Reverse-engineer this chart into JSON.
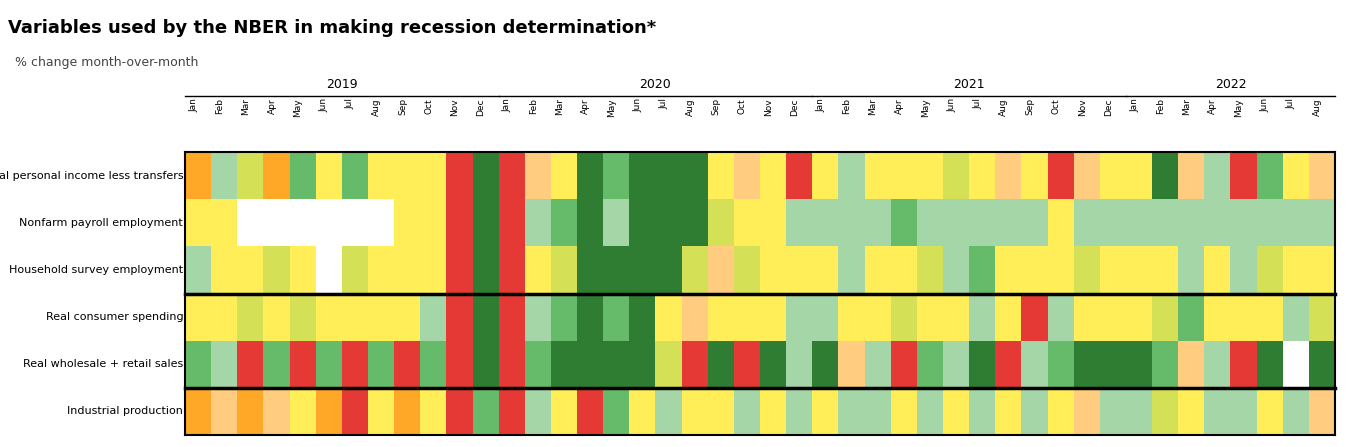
{
  "title": "Variables used by the NBER in making recession determination*",
  "subtitle": "% change month-over-month",
  "row_labels": [
    "Real personal income less transfers",
    "Nonfarm payroll employment",
    "Household survey employment",
    "Real consumer spending",
    "Real wholesale + retail sales",
    "Industrial production"
  ],
  "years": [
    "2019",
    "2020",
    "2021",
    "2022"
  ],
  "year_months": [
    12,
    12,
    12,
    8
  ],
  "months": [
    "Jan",
    "Feb",
    "Mar",
    "Apr",
    "May",
    "Jun",
    "Jul",
    "Aug",
    "Sep",
    "Oct",
    "Nov",
    "Dec",
    "Jan",
    "Feb",
    "Mar",
    "Apr",
    "May",
    "Jun",
    "Jul",
    "Aug",
    "Sep",
    "Oct",
    "Nov",
    "Dec",
    "Jan",
    "Feb",
    "Mar",
    "Apr",
    "May",
    "Jun",
    "Jul",
    "Aug",
    "Sep",
    "Oct",
    "Nov",
    "Dec",
    "Jan",
    "Feb",
    "Mar",
    "Apr",
    "May",
    "Jun",
    "Jul",
    "Aug"
  ],
  "grid_data": {
    "Real personal income less transfers": [
      "#ffa726",
      "#a5d6a7",
      "#d4e157",
      "#ffa726",
      "#66bb6a",
      "#ffee58",
      "#66bb6a",
      "#ffee58",
      "#ffee58",
      "#ffee58",
      "#e53935",
      "#2e7d32",
      "#e53935",
      "#ffcc80",
      "#ffee58",
      "#2e7d32",
      "#66bb6a",
      "#2e7d32",
      "#2e7d32",
      "#2e7d32",
      "#ffee58",
      "#ffcc80",
      "#ffee58",
      "#e53935",
      "#ffee58",
      "#a5d6a7",
      "#ffee58",
      "#ffee58",
      "#ffee58",
      "#d4e157",
      "#ffee58",
      "#ffcc80",
      "#ffee58",
      "#e53935",
      "#ffcc80",
      "#ffee58",
      "#ffee58",
      "#2e7d32",
      "#ffcc80",
      "#a5d6a7",
      "#e53935",
      "#66bb6a",
      "#ffee58",
      "#ffcc80"
    ],
    "Nonfarm payroll employment": [
      "#ffee58",
      "#ffee58",
      "#ffffff",
      "#ffffff",
      "#ffffff",
      "#ffffff",
      "#ffffff",
      "#ffffff",
      "#ffee58",
      "#ffee58",
      "#e53935",
      "#2e7d32",
      "#e53935",
      "#a5d6a7",
      "#66bb6a",
      "#2e7d32",
      "#a5d6a7",
      "#2e7d32",
      "#2e7d32",
      "#2e7d32",
      "#d4e157",
      "#ffee58",
      "#ffee58",
      "#a5d6a7",
      "#a5d6a7",
      "#a5d6a7",
      "#a5d6a7",
      "#66bb6a",
      "#a5d6a7",
      "#a5d6a7",
      "#a5d6a7",
      "#a5d6a7",
      "#a5d6a7",
      "#ffee58",
      "#a5d6a7",
      "#a5d6a7",
      "#a5d6a7",
      "#a5d6a7",
      "#a5d6a7",
      "#a5d6a7",
      "#a5d6a7",
      "#a5d6a7",
      "#a5d6a7",
      "#a5d6a7"
    ],
    "Household survey employment": [
      "#a5d6a7",
      "#ffee58",
      "#ffee58",
      "#d4e157",
      "#ffee58",
      "#ffffff",
      "#d4e157",
      "#ffee58",
      "#ffee58",
      "#ffee58",
      "#e53935",
      "#2e7d32",
      "#e53935",
      "#ffee58",
      "#d4e157",
      "#2e7d32",
      "#2e7d32",
      "#2e7d32",
      "#2e7d32",
      "#d4e157",
      "#ffcc80",
      "#d4e157",
      "#ffee58",
      "#ffee58",
      "#ffee58",
      "#a5d6a7",
      "#ffee58",
      "#ffee58",
      "#d4e157",
      "#a5d6a7",
      "#66bb6a",
      "#ffee58",
      "#ffee58",
      "#ffee58",
      "#d4e157",
      "#ffee58",
      "#ffee58",
      "#ffee58",
      "#a5d6a7",
      "#ffee58",
      "#a5d6a7",
      "#d4e157",
      "#ffee58",
      "#ffee58"
    ],
    "Real consumer spending": [
      "#ffee58",
      "#ffee58",
      "#d4e157",
      "#ffee58",
      "#d4e157",
      "#ffee58",
      "#ffee58",
      "#ffee58",
      "#ffee58",
      "#a5d6a7",
      "#e53935",
      "#2e7d32",
      "#e53935",
      "#a5d6a7",
      "#66bb6a",
      "#2e7d32",
      "#66bb6a",
      "#2e7d32",
      "#ffee58",
      "#ffcc80",
      "#ffee58",
      "#ffee58",
      "#ffee58",
      "#a5d6a7",
      "#a5d6a7",
      "#ffee58",
      "#ffee58",
      "#d4e157",
      "#ffee58",
      "#ffee58",
      "#a5d6a7",
      "#ffee58",
      "#e53935",
      "#a5d6a7",
      "#ffee58",
      "#ffee58",
      "#ffee58",
      "#d4e157",
      "#66bb6a",
      "#ffee58",
      "#ffee58",
      "#ffee58",
      "#a5d6a7",
      "#d4e157"
    ],
    "Real wholesale + retail sales": [
      "#66bb6a",
      "#a5d6a7",
      "#e53935",
      "#66bb6a",
      "#e53935",
      "#66bb6a",
      "#e53935",
      "#66bb6a",
      "#e53935",
      "#66bb6a",
      "#e53935",
      "#2e7d32",
      "#e53935",
      "#66bb6a",
      "#2e7d32",
      "#2e7d32",
      "#2e7d32",
      "#2e7d32",
      "#d4e157",
      "#e53935",
      "#2e7d32",
      "#e53935",
      "#2e7d32",
      "#a5d6a7",
      "#2e7d32",
      "#ffcc80",
      "#a5d6a7",
      "#e53935",
      "#66bb6a",
      "#a5d6a7",
      "#2e7d32",
      "#e53935",
      "#a5d6a7",
      "#66bb6a",
      "#2e7d32",
      "#2e7d32",
      "#2e7d32",
      "#66bb6a",
      "#ffcc80",
      "#a5d6a7",
      "#e53935",
      "#2e7d32",
      "#ffffff",
      "#2e7d32"
    ],
    "Industrial production": [
      "#ffa726",
      "#ffcc80",
      "#ffa726",
      "#ffcc80",
      "#ffee58",
      "#ffa726",
      "#e53935",
      "#ffee58",
      "#ffa726",
      "#ffee58",
      "#e53935",
      "#66bb6a",
      "#e53935",
      "#a5d6a7",
      "#ffee58",
      "#e53935",
      "#66bb6a",
      "#ffee58",
      "#a5d6a7",
      "#ffee58",
      "#ffee58",
      "#a5d6a7",
      "#ffee58",
      "#a5d6a7",
      "#ffee58",
      "#a5d6a7",
      "#a5d6a7",
      "#ffee58",
      "#a5d6a7",
      "#ffee58",
      "#a5d6a7",
      "#ffee58",
      "#a5d6a7",
      "#ffee58",
      "#ffcc80",
      "#a5d6a7",
      "#a5d6a7",
      "#d4e157",
      "#ffee58",
      "#a5d6a7",
      "#a5d6a7",
      "#ffee58",
      "#a5d6a7",
      "#ffcc80"
    ]
  },
  "separator_rows_after": [
    2,
    4
  ],
  "background_color": "#ffffff",
  "title_fontsize": 13,
  "subtitle_fontsize": 9,
  "label_fontsize": 8,
  "month_fontsize": 6.5,
  "year_fontsize": 9
}
